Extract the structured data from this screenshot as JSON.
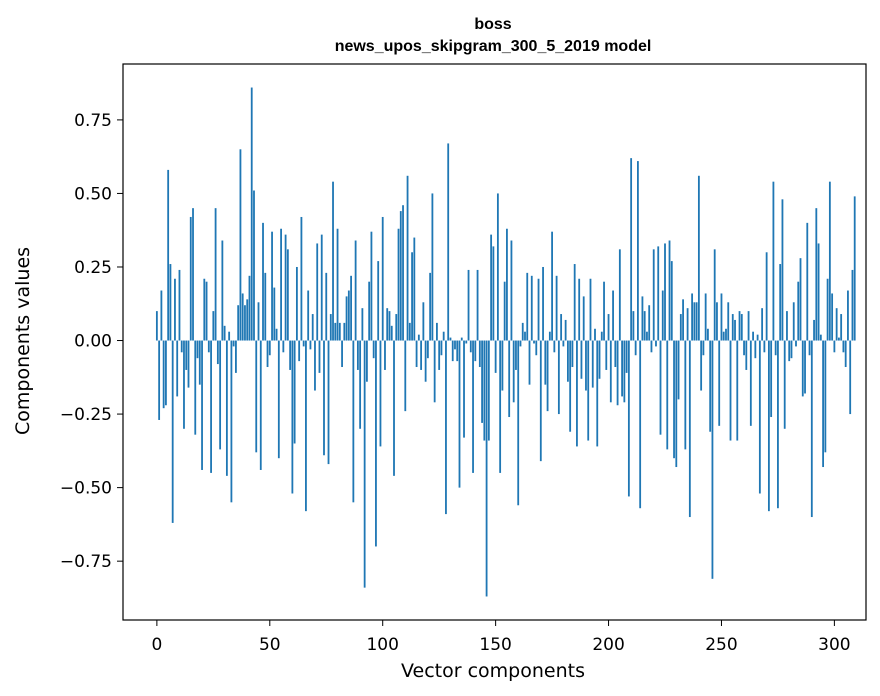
{
  "chart_data": {
    "type": "bar",
    "title": "boss",
    "subtitle": "news_upos_skipgram_300_5_2019 model",
    "xlabel": "Vector components",
    "ylabel": "Components values",
    "xlim": [
      -15,
      314
    ],
    "ylim": [
      -0.95,
      0.94
    ],
    "xticks": [
      0,
      50,
      100,
      150,
      200,
      250,
      300
    ],
    "yticks": [
      0.75,
      0.5,
      0.25,
      0.0,
      -0.25,
      -0.5,
      -0.75
    ],
    "xtick_labels": [
      "0",
      "50",
      "100",
      "150",
      "200",
      "250",
      "300"
    ],
    "ytick_labels": [
      "0.75",
      "0.50",
      "0.25",
      "0.00",
      "−0.25",
      "−0.50",
      "−0.75"
    ],
    "bar_color": "#1f77b4",
    "grid": false,
    "values": [
      0.1,
      -0.27,
      0.17,
      -0.23,
      -0.22,
      0.58,
      0.26,
      -0.62,
      0.21,
      -0.19,
      0.24,
      -0.04,
      -0.3,
      -0.1,
      -0.16,
      0.42,
      0.45,
      -0.32,
      -0.06,
      -0.15,
      -0.44,
      0.21,
      0.2,
      -0.04,
      -0.45,
      0.1,
      0.45,
      -0.08,
      -0.37,
      0.34,
      0.05,
      -0.46,
      0.03,
      -0.55,
      -0.02,
      -0.11,
      0.12,
      0.65,
      0.16,
      0.12,
      0.14,
      0.22,
      0.86,
      0.51,
      -0.38,
      0.13,
      -0.44,
      0.4,
      0.23,
      -0.09,
      -0.05,
      0.37,
      0.18,
      0.04,
      -0.4,
      0.38,
      -0.04,
      0.36,
      0.31,
      -0.1,
      -0.52,
      -0.35,
      0.25,
      -0.07,
      0.42,
      -0.02,
      -0.58,
      0.17,
      -0.03,
      0.09,
      -0.17,
      0.33,
      -0.11,
      0.36,
      -0.39,
      0.23,
      -0.42,
      0.09,
      0.54,
      0.06,
      0.38,
      0.06,
      -0.09,
      0.06,
      0.15,
      0.17,
      0.22,
      -0.55,
      0.34,
      -0.1,
      -0.3,
      0.11,
      -0.84,
      -0.14,
      0.2,
      0.37,
      -0.06,
      -0.7,
      0.27,
      -0.36,
      0.42,
      -0.1,
      0.11,
      0.1,
      0.05,
      -0.46,
      0.09,
      0.38,
      0.44,
      0.46,
      -0.24,
      0.56,
      0.06,
      0.3,
      0.35,
      -0.09,
      0.02,
      -0.1,
      0.13,
      -0.14,
      -0.06,
      0.23,
      0.5,
      -0.21,
      0.06,
      -0.1,
      -0.05,
      0.03,
      -0.59,
      0.67,
      0.01,
      -0.07,
      -0.03,
      -0.07,
      -0.5,
      0.01,
      -0.33,
      -0.01,
      0.24,
      -0.04,
      -0.45,
      -0.07,
      0.24,
      -0.09,
      -0.28,
      -0.34,
      -0.87,
      -0.34,
      0.36,
      0.32,
      -0.11,
      0.5,
      -0.45,
      -0.17,
      0.2,
      0.38,
      -0.26,
      0.34,
      -0.21,
      -0.1,
      -0.56,
      -0.02,
      0.06,
      0.03,
      0.23,
      -0.15,
      0.22,
      -0.01,
      -0.05,
      0.21,
      -0.41,
      0.25,
      -0.15,
      -0.24,
      0.03,
      0.37,
      -0.04,
      0.22,
      -0.25,
      0.09,
      -0.02,
      0.07,
      -0.14,
      -0.31,
      -0.09,
      0.26,
      -0.36,
      0.21,
      -0.13,
      0.15,
      -0.17,
      -0.34,
      0.21,
      -0.16,
      0.04,
      -0.36,
      -0.13,
      0.03,
      0.2,
      -0.1,
      0.09,
      -0.21,
      0.17,
      -0.09,
      -0.22,
      0.31,
      -0.19,
      -0.21,
      -0.11,
      -0.53,
      0.62,
      0.1,
      -0.05,
      0.61,
      -0.57,
      0.15,
      0.1,
      0.03,
      0.12,
      -0.04,
      0.31,
      -0.02,
      0.32,
      -0.32,
      0.17,
      0.33,
      -0.37,
      0.34,
      0.27,
      -0.4,
      -0.43,
      -0.2,
      0.09,
      0.14,
      -0.37,
      0.11,
      -0.6,
      0.16,
      0.13,
      0.13,
      0.56,
      -0.17,
      -0.05,
      0.16,
      0.04,
      -0.31,
      -0.81,
      0.31,
      0.13,
      -0.29,
      0.16,
      0.03,
      0.04,
      0.13,
      -0.34,
      0.09,
      0.07,
      -0.34,
      0.1,
      0.09,
      -0.05,
      -0.1,
      0.1,
      -0.29,
      0.03,
      -0.06,
      0.02,
      -0.52,
      0.11,
      -0.04,
      0.3,
      -0.58,
      -0.26,
      0.54,
      -0.05,
      -0.57,
      0.26,
      0.48,
      -0.3,
      0.1,
      -0.07,
      -0.06,
      0.13,
      -0.02,
      0.2,
      0.28,
      -0.19,
      -0.18,
      0.4,
      -0.05,
      -0.6,
      0.07,
      0.45,
      0.33,
      0.02,
      -0.43,
      -0.38,
      0.21,
      0.54,
      0.16,
      -0.04,
      0.11,
      0.01,
      0.09,
      -0.04,
      -0.09,
      0.17,
      -0.25,
      0.24,
      0.49
    ]
  }
}
